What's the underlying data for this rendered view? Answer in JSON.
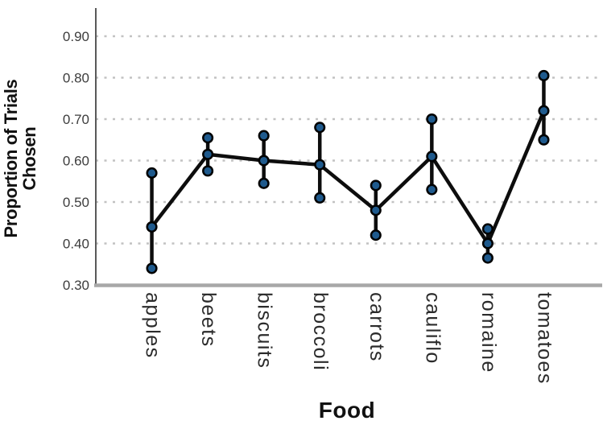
{
  "figure": {
    "background": "#ffffff",
    "y_axis_title_line1": "Proportion of Trials",
    "y_axis_title_line2": "Chosen",
    "x_axis_title": "Food"
  },
  "chart_data": {
    "type": "line",
    "subtype": "means-with-error-bars",
    "xlabel": "Food",
    "ylabel": "Proportion of Trials Chosen",
    "categories": [
      "apples",
      "beets",
      "biscuits",
      "broccoli",
      "carrots",
      "cauliflo",
      "romaine",
      "tomatoes"
    ],
    "series": [
      {
        "name": "mean",
        "values": [
          0.44,
          0.615,
          0.6,
          0.59,
          0.48,
          0.61,
          0.4,
          0.72
        ]
      },
      {
        "name": "upper_error_bound",
        "values": [
          0.57,
          0.655,
          0.66,
          0.68,
          0.54,
          0.7,
          0.435,
          0.805
        ]
      },
      {
        "name": "lower_error_bound",
        "values": [
          0.34,
          0.575,
          0.545,
          0.51,
          0.42,
          0.53,
          0.365,
          0.65
        ]
      }
    ],
    "ylim": [
      0.3,
      0.968
    ],
    "yticks": [
      0.3,
      0.4,
      0.5,
      0.6,
      0.7,
      0.8,
      0.9
    ],
    "ytick_labels": [
      "0.30",
      "0.40",
      "0.50",
      "0.60",
      "0.70",
      "0.80",
      "0.90"
    ],
    "grid": {
      "horizontal": true,
      "style": "dotted",
      "color": "#c2c2c2"
    },
    "legend": "none",
    "colors": {
      "line": "#0d0d0d",
      "error_bar": "#0d0d0d",
      "marker_fill": "#1f5a8d",
      "marker_edge": "#000000",
      "axis_line": "#a8a8a8",
      "spine": "#595959",
      "tick_label": "#3d3d3d",
      "category_label": "#2b2b2b"
    }
  }
}
